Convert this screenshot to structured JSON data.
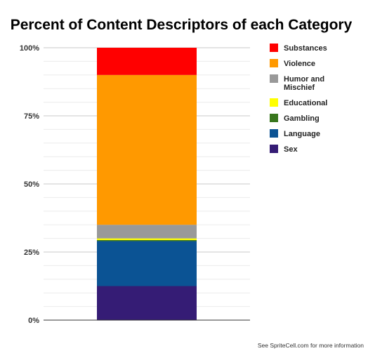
{
  "chart_data": {
    "type": "bar",
    "stacked": true,
    "title": "Percent of Content Descriptors of each Category",
    "categories": [
      ""
    ],
    "ylim": [
      0,
      100
    ],
    "y_ticks": [
      0,
      25,
      50,
      75,
      100
    ],
    "y_tick_labels": [
      "0%",
      "25%",
      "50%",
      "75%",
      "100%"
    ],
    "grid": true,
    "legend_position": "right",
    "series": [
      {
        "name": "Sex",
        "values": [
          12.5
        ],
        "color": "#351c75"
      },
      {
        "name": "Language",
        "values": [
          16.5
        ],
        "color": "#0b5394"
      },
      {
        "name": "Gambling",
        "values": [
          0.4
        ],
        "color": "#38761d"
      },
      {
        "name": "Educational",
        "values": [
          0.6
        ],
        "color": "#ffff00"
      },
      {
        "name": "Humor and Mischief",
        "values": [
          5.0
        ],
        "color": "#999999"
      },
      {
        "name": "Violence",
        "values": [
          55.0
        ],
        "color": "#ff9900"
      },
      {
        "name": "Substances",
        "values": [
          10.0
        ],
        "color": "#ff0000"
      }
    ],
    "legend_order": [
      "Substances",
      "Violence",
      "Humor and Mischief",
      "Educational",
      "Gambling",
      "Language",
      "Sex"
    ]
  },
  "footer": {
    "note": "See SpriteCell.com for more information"
  }
}
